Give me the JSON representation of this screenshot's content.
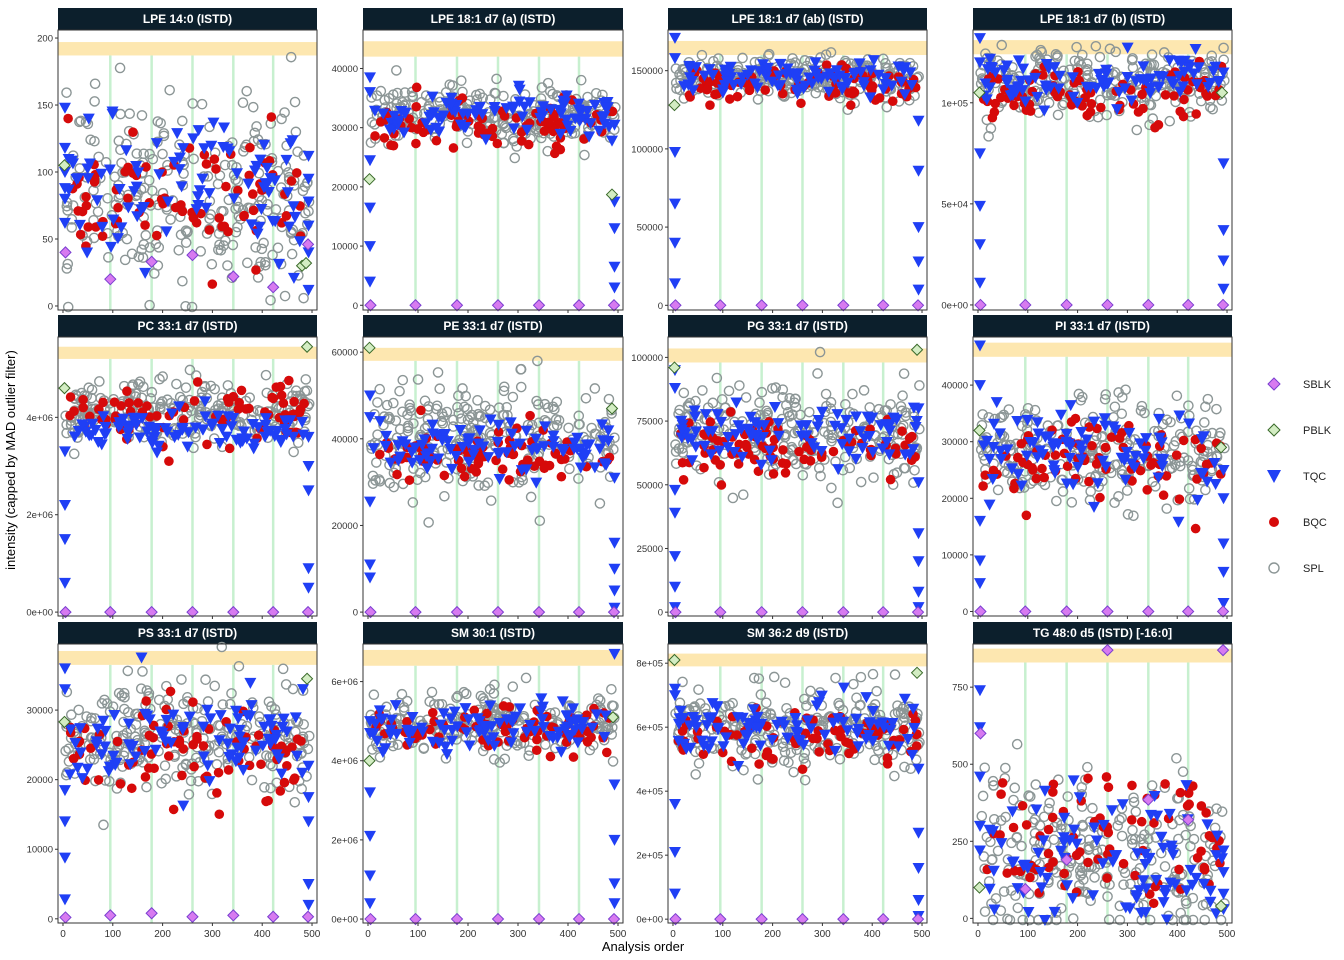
{
  "figure": {
    "ylabel": "intensity (capped by MAD outlier filter)",
    "xlabel": "Analysis order"
  },
  "colors": {
    "strip_bg": "#0c1f2c",
    "strip_text": "#ffffff",
    "cap_band": "#fde7b0",
    "batch_line": "#c7f0cf",
    "SBLK_fill": "#d77af0",
    "SBLK_stroke": "#7a3fd0",
    "PBLK_fill": "#d3edc3",
    "PBLK_stroke": "#3a6a2a",
    "TQC_fill": "#1f3ff5",
    "BQC_fill": "#d60a0a",
    "SPL_stroke": "#8c9696"
  },
  "legend": {
    "items": [
      {
        "key": "SBLK",
        "label": "SBLK",
        "shape": "diamond"
      },
      {
        "key": "PBLK",
        "label": "PBLK",
        "shape": "diamond"
      },
      {
        "key": "TQC",
        "label": "TQC",
        "shape": "triangle-down"
      },
      {
        "key": "BQC",
        "label": "BQC",
        "shape": "circle-filled"
      },
      {
        "key": "SPL",
        "label": "SPL",
        "shape": "circle-open"
      }
    ]
  },
  "chart_data": {
    "type": "scatter",
    "facet_layout": {
      "rows": 3,
      "cols": 4
    },
    "x_ticks": [
      0,
      100,
      200,
      300,
      400,
      500
    ],
    "x_range": [
      -10,
      510
    ],
    "batch_boundaries": [
      95,
      178,
      260,
      342,
      422
    ],
    "blank_positions": [
      5,
      95,
      178,
      260,
      342,
      422,
      492
    ],
    "panels": [
      {
        "title": "LPE 14:0 (ISTD)",
        "ylim": [
          -3,
          206
        ],
        "yticks": [
          0,
          50,
          100,
          150,
          200
        ],
        "ytick_labels": [
          "0",
          "50",
          "100",
          "150",
          "200"
        ],
        "cap": [
          187,
          197
        ],
        "sample": {
          "mean": 85,
          "sd": 35
        },
        "bqc": {
          "mean": 80,
          "sd": 22
        },
        "tqc": {
          "mean": 85,
          "sd": 25
        },
        "sblk": [
          40,
          20,
          33,
          38,
          22,
          14,
          46
        ],
        "pblk": [
          [
            3,
            105
          ],
          [
            480,
            30
          ],
          [
            488,
            32
          ]
        ],
        "tqc_run_start": [
          148,
          118,
          100,
          62,
          88,
          80
        ],
        "tqc_run_end": [
          112,
          95,
          78,
          60,
          40,
          12
        ]
      },
      {
        "title": "LPE 18:1 d7 (a) (ISTD)",
        "ylim": [
          -800,
          46500
        ],
        "yticks": [
          0,
          10000,
          20000,
          30000,
          40000
        ],
        "ytick_labels": [
          "0",
          "10000",
          "20000",
          "30000",
          "40000"
        ],
        "cap": [
          42000,
          44600
        ],
        "sample": {
          "mean": 32000,
          "sd": 2500
        },
        "bqc": {
          "mean": 30500,
          "sd": 2000
        },
        "tqc": {
          "mean": 32000,
          "sd": 2000
        },
        "sblk": [
          0,
          0,
          0,
          0,
          0,
          0,
          0
        ],
        "pblk": [
          [
            3,
            21300
          ],
          [
            488,
            18700
          ]
        ],
        "tqc_run_start": [
          38500,
          36000,
          24500,
          16500,
          10000,
          4000
        ],
        "tqc_run_end": [
          30500,
          17500,
          13000,
          6500,
          3000
        ]
      },
      {
        "title": "LPE 18:1 d7 (ab) (ISTD)",
        "ylim": [
          -3000,
          176000
        ],
        "yticks": [
          0,
          50000,
          100000,
          150000
        ],
        "ytick_labels": [
          "0",
          "50000",
          "100000",
          "150000"
        ],
        "cap": [
          160000,
          169000
        ],
        "sample": {
          "mean": 145000,
          "sd": 7000
        },
        "bqc": {
          "mean": 140000,
          "sd": 6000
        },
        "tqc": {
          "mean": 146000,
          "sd": 5000
        },
        "sblk": [
          0,
          0,
          0,
          0,
          0,
          0,
          0
        ],
        "pblk": [
          [
            3,
            128000
          ]
        ],
        "tqc_run_start": [
          171000,
          158000,
          98000,
          65000,
          40000,
          14000
        ],
        "tqc_run_end": [
          118000,
          86000,
          50000,
          28000,
          10000
        ]
      },
      {
        "title": "LPE 18:1 d7 (b) (ISTD)",
        "ylim": [
          -2500,
          136000
        ],
        "yticks": [
          0,
          50000,
          100000
        ],
        "ytick_labels": [
          "0e+00",
          "5e+04",
          "1e+05"
        ],
        "cap": [
          124000,
          131000
        ],
        "sample": {
          "mean": 110000,
          "sd": 8000
        },
        "bqc": {
          "mean": 104000,
          "sd": 7000
        },
        "tqc": {
          "mean": 111000,
          "sd": 6000
        },
        "sblk": [
          0,
          0,
          0,
          0,
          0,
          0,
          0
        ],
        "pblk": [
          [
            3,
            105000
          ],
          [
            490,
            105000
          ]
        ],
        "tqc_run_start": [
          132000,
          120000,
          75000,
          49000,
          30000,
          11000
        ],
        "tqc_run_end": [
          115000,
          70000,
          37000,
          22000,
          8000
        ]
      },
      {
        "title": "PC 33:1 d7 (ISTD)",
        "ylim": [
          -80000,
          5650000
        ],
        "yticks": [
          0,
          2000000,
          4000000
        ],
        "ytick_labels": [
          "0e+00",
          "2e+06",
          "4e+06"
        ],
        "cap": [
          5200000,
          5450000
        ],
        "sample": {
          "mean": 4100000,
          "sd": 350000
        },
        "bqc": {
          "mean": 4000000,
          "sd": 300000
        },
        "tqc": {
          "mean": 3700000,
          "sd": 200000
        },
        "sblk": [
          0,
          0,
          0,
          0,
          0,
          0,
          0
        ],
        "pblk": [
          [
            3,
            4600000
          ],
          [
            490,
            5450000
          ]
        ],
        "tqc_run_start": [
          3300000,
          2200000,
          1500000,
          600000
        ],
        "tqc_run_end": [
          3600000,
          3000000,
          2500000,
          900000,
          500000
        ]
      },
      {
        "title": "PE 33:1 d7 (ISTD)",
        "ylim": [
          -900,
          63500
        ],
        "yticks": [
          0,
          20000,
          40000,
          60000
        ],
        "ytick_labels": [
          "0",
          "20000",
          "40000",
          "60000"
        ],
        "cap": [
          58000,
          61000
        ],
        "sample": {
          "mean": 41000,
          "sd": 6000
        },
        "bqc": {
          "mean": 37000,
          "sd": 3500
        },
        "tqc": {
          "mean": 38000,
          "sd": 3500
        },
        "sblk": [
          0,
          0,
          0,
          0,
          0,
          0,
          0
        ],
        "pblk": [
          [
            3,
            61000
          ],
          [
            488,
            47000
          ]
        ],
        "tqc_run_start": [
          50000,
          45000,
          25500,
          11000,
          8000
        ],
        "tqc_run_end": [
          31000,
          16000,
          10000,
          5000,
          1000
        ]
      },
      {
        "title": "PG 33:1 d7 (ISTD)",
        "ylim": [
          -1500,
          108000
        ],
        "yticks": [
          0,
          25000,
          50000,
          75000,
          100000
        ],
        "ytick_labels": [
          "0",
          "25000",
          "50000",
          "75000",
          "100000"
        ],
        "cap": [
          98000,
          103500
        ],
        "sample": {
          "mean": 70000,
          "sd": 9000
        },
        "bqc": {
          "mean": 65000,
          "sd": 6000
        },
        "tqc": {
          "mean": 70000,
          "sd": 6000
        },
        "sblk": [
          0,
          0,
          0,
          0,
          0,
          0,
          0
        ],
        "pblk": [
          [
            3,
            96000
          ],
          [
            490,
            103000
          ]
        ],
        "tqc_run_start": [
          95000,
          88000,
          48000,
          39000,
          22000,
          10000,
          2000
        ],
        "tqc_run_end": [
          80000,
          51000,
          31000,
          20000,
          8000,
          2000
        ]
      },
      {
        "title": "PI 33:1 d7 (ISTD)",
        "ylim": [
          -800,
          48500
        ],
        "yticks": [
          0,
          10000,
          20000,
          30000,
          40000
        ],
        "ytick_labels": [
          "0",
          "10000",
          "20000",
          "30000",
          "40000"
        ],
        "cap": [
          45000,
          47500
        ],
        "sample": {
          "mean": 28000,
          "sd": 4500
        },
        "bqc": {
          "mean": 27000,
          "sd": 4000
        },
        "tqc": {
          "mean": 28000,
          "sd": 4000
        },
        "sblk": [
          0,
          0,
          0,
          0,
          0,
          0,
          0
        ],
        "pblk": [
          [
            3,
            32000
          ],
          [
            488,
            29000
          ]
        ],
        "tqc_run_start": [
          47000,
          40000,
          16000,
          9000,
          5000
        ],
        "tqc_run_end": [
          25000,
          20000,
          12000,
          7000,
          1500
        ]
      },
      {
        "title": "PS 33:1 d7 (ISTD)",
        "ylim": [
          -600,
          39500
        ],
        "yticks": [
          0,
          10000,
          20000,
          30000
        ],
        "ytick_labels": [
          "0",
          "10000",
          "20000",
          "30000"
        ],
        "cap": [
          36500,
          38500
        ],
        "sample": {
          "mean": 26000,
          "sd": 4000
        },
        "bqc": {
          "mean": 24000,
          "sd": 3500
        },
        "tqc": {
          "mean": 26000,
          "sd": 3500
        },
        "sblk": [
          200,
          500,
          800,
          300,
          500,
          300,
          300
        ],
        "pblk": [
          [
            3,
            28300
          ],
          [
            490,
            34500
          ]
        ],
        "tqc_run_start": [
          36000,
          33000,
          18500,
          14000,
          8800,
          2800
        ],
        "tqc_run_end": [
          22000,
          17500,
          14000,
          5000,
          2000
        ]
      },
      {
        "title": "SM 30:1 (ISTD)",
        "ylim": [
          -100000,
          6950000
        ],
        "yticks": [
          0,
          2000000,
          4000000,
          6000000
        ],
        "ytick_labels": [
          "0e+00",
          "2e+06",
          "4e+06",
          "6e+06"
        ],
        "cap": [
          6400000,
          6800000
        ],
        "sample": {
          "mean": 4900000,
          "sd": 400000
        },
        "bqc": {
          "mean": 4800000,
          "sd": 300000
        },
        "tqc": {
          "mean": 4800000,
          "sd": 300000
        },
        "sblk": [
          0,
          0,
          0,
          0,
          0,
          0,
          0
        ],
        "pblk": [
          [
            3,
            4000000
          ],
          [
            490,
            5100000
          ]
        ],
        "tqc_run_start": [
          5000000,
          4700000,
          3200000,
          2100000,
          1100000,
          400000
        ],
        "tqc_run_end": [
          6700000,
          3400000,
          2000000,
          900000,
          400000
        ]
      },
      {
        "title": "SM 36:2 d9 (ISTD)",
        "ylim": [
          -12000,
          860000
        ],
        "yticks": [
          0,
          200000,
          400000,
          600000,
          800000
        ],
        "ytick_labels": [
          "0e+00",
          "2e+05",
          "4e+05",
          "6e+05",
          "8e+05"
        ],
        "cap": [
          790000,
          830000
        ],
        "sample": {
          "mean": 600000,
          "sd": 60000
        },
        "bqc": {
          "mean": 570000,
          "sd": 40000
        },
        "tqc": {
          "mean": 600000,
          "sd": 50000
        },
        "sblk": [
          0,
          0,
          0,
          0,
          0,
          0,
          0
        ],
        "pblk": [
          [
            3,
            810000
          ],
          [
            490,
            770000
          ]
        ],
        "tqc_run_start": [
          720000,
          700000,
          360000,
          210000,
          80000
        ],
        "tqc_run_end": [
          470000,
          270000,
          160000,
          60000,
          10000
        ]
      },
      {
        "title": "TG 48:0 d5 (ISTD) [-16:0]",
        "ylim": [
          -15,
          890
        ],
        "yticks": [
          0,
          250,
          500,
          750
        ],
        "ytick_labels": [
          "0",
          "250",
          "500",
          "750"
        ],
        "cap": [
          830,
          875
        ],
        "sample": {
          "mean": 200,
          "sd": 130
        },
        "bqc": {
          "mean": 250,
          "sd": 110
        },
        "tqc": {
          "mean": 200,
          "sd": 110
        },
        "sblk": [
          600,
          95,
          190,
          870,
          385,
          320,
          870
        ],
        "pblk": [
          [
            3,
            100
          ],
          [
            488,
            40
          ]
        ],
        "tqc_run_start": [
          740,
          620,
          460,
          300,
          220
        ],
        "tqc_run_end": [
          220,
          150,
          80,
          30
        ]
      }
    ]
  }
}
